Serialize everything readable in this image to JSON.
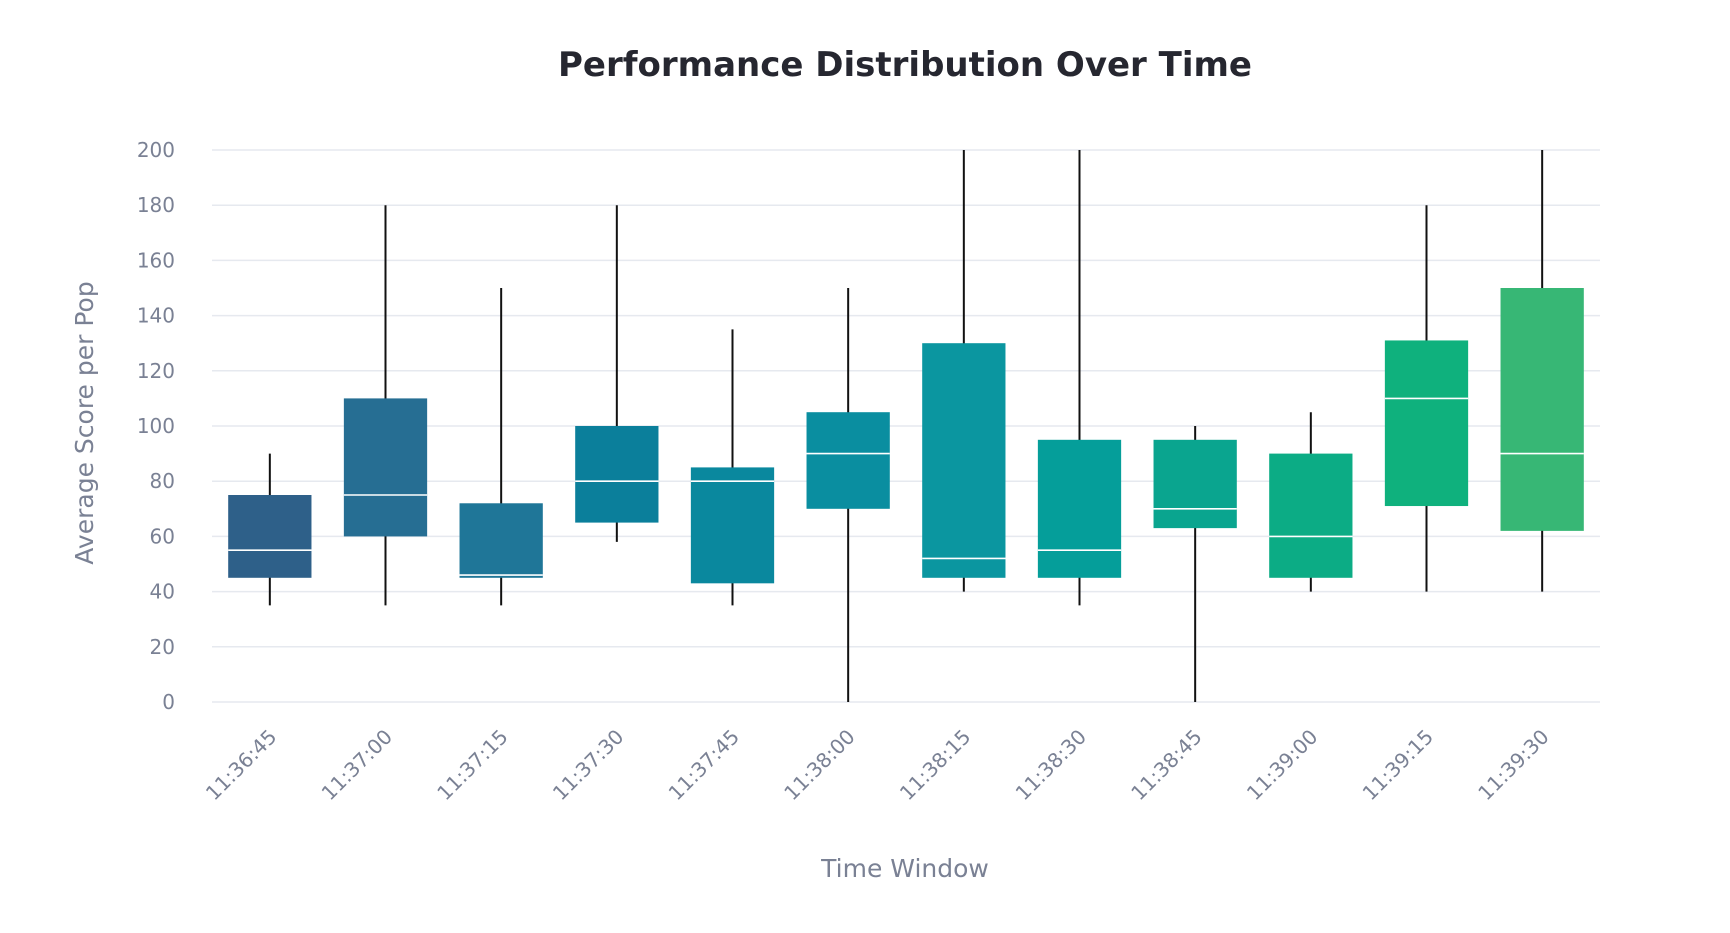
{
  "chart_data": {
    "type": "box",
    "title": "Performance Distribution Over Time",
    "xlabel": "Time Window",
    "ylabel": "Average Score per Pop",
    "ylim": [
      0,
      200
    ],
    "yticks": [
      0,
      20,
      40,
      60,
      80,
      100,
      120,
      140,
      160,
      180,
      200
    ],
    "ytick_labels": [
      "0",
      "20",
      "40",
      "60",
      "80",
      "100",
      "120",
      "140",
      "160",
      "180",
      "200"
    ],
    "grid": true,
    "legend": "none",
    "categories": [
      "11:36:45",
      "11:37:00",
      "11:37:15",
      "11:37:30",
      "11:37:45",
      "11:38:00",
      "11:38:15",
      "11:38:30",
      "11:38:45",
      "11:39:00",
      "11:39:15",
      "11:39:30"
    ],
    "boxes": [
      {
        "min": 35,
        "q1": 45,
        "median": 55,
        "q3": 75,
        "max": 90,
        "color": "#2e6089"
      },
      {
        "min": 35,
        "q1": 60,
        "median": 75,
        "q3": 110,
        "max": 180,
        "color": "#266e93"
      },
      {
        "min": 35,
        "q1": 45,
        "median": 46,
        "q3": 72,
        "max": 150,
        "color": "#1f7698"
      },
      {
        "min": 58,
        "q1": 65,
        "median": 80,
        "q3": 100,
        "max": 180,
        "color": "#0b7f9b"
      },
      {
        "min": 35,
        "q1": 43,
        "median": 80,
        "q3": 85,
        "max": 135,
        "color": "#0a889e"
      },
      {
        "min": 0,
        "q1": 70,
        "median": 90,
        "q3": 105,
        "max": 150,
        "color": "#0a8ea0"
      },
      {
        "min": 40,
        "q1": 45,
        "median": 52,
        "q3": 130,
        "max": 200,
        "color": "#0b96a0"
      },
      {
        "min": 35,
        "q1": 45,
        "median": 55,
        "q3": 95,
        "max": 200,
        "color": "#059e9a"
      },
      {
        "min": 0,
        "q1": 63,
        "median": 70,
        "q3": 95,
        "max": 100,
        "color": "#0aa58f"
      },
      {
        "min": 40,
        "q1": 45,
        "median": 60,
        "q3": 90,
        "max": 105,
        "color": "#0cac85"
      },
      {
        "min": 40,
        "q1": 71,
        "median": 110,
        "q3": 131,
        "max": 180,
        "color": "#0fb17d"
      },
      {
        "min": 40,
        "q1": 62,
        "median": 90,
        "q3": 150,
        "max": 200,
        "color": "#37b775"
      }
    ]
  }
}
